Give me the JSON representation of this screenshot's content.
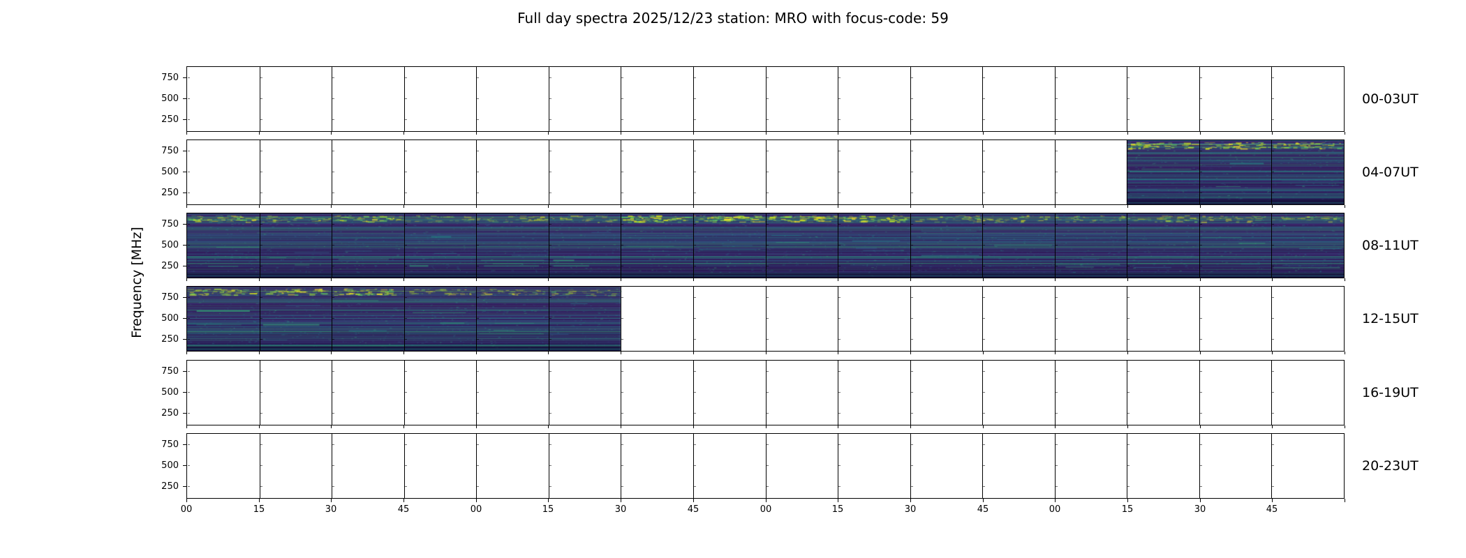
{
  "title": "Full day spectra 2025/12/23 station: MRO with focus-code: 59",
  "chart_data": {
    "type": "heatmap",
    "subtype": "radio-spectrogram-day-overview",
    "ylabel": "Frequency [MHz]",
    "y_ticks": [
      "750",
      "500",
      "250"
    ],
    "x_tick_labels": [
      "00",
      "15",
      "30",
      "45",
      "00",
      "15",
      "30",
      "45",
      "00",
      "15",
      "30",
      "45",
      "00",
      "15",
      "30",
      "45"
    ],
    "segments_per_row": 16,
    "segment_minutes": 15,
    "colormap": "viridis",
    "rows": [
      {
        "label": "00-03UT",
        "filled_segments": [],
        "top_band_intensity": []
      },
      {
        "label": "04-07UT",
        "filled_segments": [
          13,
          14,
          15
        ],
        "top_band_intensity": [
          0.9,
          0.85,
          0.8
        ]
      },
      {
        "label": "08-11UT",
        "filled_segments": [
          0,
          1,
          2,
          3,
          4,
          5,
          6,
          7,
          8,
          9,
          10,
          11,
          12,
          13,
          14,
          15
        ],
        "top_band_intensity": [
          0.8,
          0.6,
          0.75,
          0.5,
          0.55,
          0.5,
          0.95,
          1.0,
          0.95,
          0.85,
          0.55,
          0.6,
          0.5,
          0.65,
          0.5,
          0.55
        ]
      },
      {
        "label": "12-15UT",
        "filled_segments": [
          0,
          1,
          2,
          3,
          4,
          5
        ],
        "top_band_intensity": [
          0.85,
          0.75,
          0.85,
          0.6,
          0.55,
          0.5
        ]
      },
      {
        "label": "16-19UT",
        "filled_segments": [],
        "top_band_intensity": []
      },
      {
        "label": "20-23UT",
        "filled_segments": [],
        "top_band_intensity": []
      }
    ],
    "colors": {
      "background": "#ffffff",
      "frame": "#000000",
      "spectrogram_base_top": "#3c1a60",
      "spectrogram_base_bottom": "#1d1245",
      "spectrogram_streaks": [
        "#443983",
        "#31688e",
        "#26828e",
        "#21918c",
        "#35b779"
      ],
      "spectrogram_bright": [
        "#5ec962",
        "#a0da39",
        "#d2e21b",
        "#fde725"
      ]
    }
  }
}
